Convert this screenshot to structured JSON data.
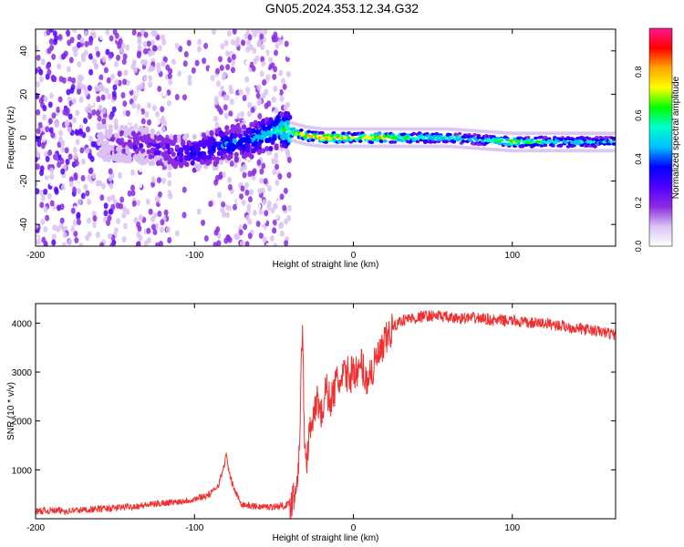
{
  "figure": {
    "title": "GN05.2024.353.12.34.G32"
  },
  "chart_data": [
    {
      "type": "heatmap",
      "xlabel": "Height of straight line (km)",
      "ylabel": "Frequency (Hz)",
      "xlim": [
        -200,
        165
      ],
      "ylim": [
        -50,
        50
      ],
      "xticks": [
        -200,
        -100,
        0,
        100
      ],
      "yticks": [
        -40,
        -20,
        0,
        20,
        40
      ],
      "grid": false,
      "colorbar": {
        "label": "Normalized spectral amplitude",
        "ticks": [
          0.0,
          0.2,
          0.4,
          0.6,
          0.8
        ],
        "range": [
          0,
          1
        ],
        "colors": [
          "#ffffff",
          "#d9c2f2",
          "#8a2be2",
          "#5000ff",
          "#0000ff",
          "#00bfff",
          "#00ffcc",
          "#00ff00",
          "#ffff00",
          "#ffa500",
          "#ff0000",
          "#ff1493"
        ]
      },
      "ridge": {
        "x": [
          -160,
          -140,
          -120,
          -110,
          -100,
          -90,
          -80,
          -70,
          -60,
          -50,
          -45,
          -40,
          -30,
          -20,
          -10,
          0,
          10,
          20,
          40,
          60,
          80,
          100,
          120,
          140,
          165
        ],
        "y": [
          -2,
          -3,
          -5,
          -7,
          -7,
          -5,
          -3,
          -2,
          0,
          3,
          4,
          3,
          1,
          0,
          0,
          0,
          0,
          0,
          0,
          0,
          -1,
          -2,
          -2,
          -2,
          -2
        ],
        "amplitude": [
          0.1,
          0.2,
          0.25,
          0.3,
          0.35,
          0.35,
          0.4,
          0.4,
          0.45,
          0.5,
          0.55,
          0.65,
          0.8,
          0.9,
          0.85,
          0.7,
          0.8,
          0.75,
          0.6,
          0.55,
          0.5,
          0.75,
          0.55,
          0.5,
          0.5
        ]
      }
    },
    {
      "type": "line",
      "xlabel": "Height of straight line (km)",
      "ylabel": "SNR (10 * v/v)",
      "xlim": [
        -200,
        165
      ],
      "ylim": [
        0,
        4400
      ],
      "xticks": [
        -200,
        -100,
        0,
        100
      ],
      "yticks": [
        1000,
        2000,
        3000,
        4000
      ],
      "grid": false,
      "series": [
        {
          "color": "#ee3030",
          "x": [
            -200,
            -190,
            -180,
            -170,
            -160,
            -150,
            -140,
            -130,
            -120,
            -110,
            -100,
            -95,
            -90,
            -85,
            -82,
            -80,
            -78,
            -75,
            -72,
            -70,
            -65,
            -60,
            -55,
            -50,
            -45,
            -40,
            -36,
            -34,
            -33,
            -32,
            -31,
            -30,
            -28,
            -26,
            -25,
            -23,
            -20,
            -17,
            -15,
            -12,
            -10,
            -8,
            -5,
            -2,
            0,
            3,
            5,
            8,
            10,
            12,
            15,
            18,
            20,
            22,
            25,
            28,
            30,
            35,
            40,
            45,
            50,
            55,
            60,
            70,
            80,
            90,
            100,
            110,
            120,
            130,
            140,
            150,
            160,
            165
          ],
          "y": [
            150,
            170,
            160,
            180,
            200,
            220,
            250,
            280,
            320,
            350,
            400,
            450,
            500,
            700,
            1000,
            1300,
            900,
            600,
            400,
            300,
            260,
            250,
            240,
            250,
            260,
            300,
            600,
            1500,
            2800,
            4100,
            1800,
            1000,
            1700,
            2200,
            1900,
            2500,
            2100,
            2700,
            2400,
            2600,
            2900,
            2700,
            3000,
            2900,
            3100,
            2900,
            3200,
            2800,
            3000,
            3000,
            3300,
            3400,
            3600,
            3750,
            3900,
            4000,
            4050,
            4100,
            4100,
            4150,
            4150,
            4150,
            4100,
            4100,
            4100,
            4050,
            4050,
            4000,
            4000,
            3950,
            3900,
            3850,
            3800,
            3750
          ]
        }
      ]
    }
  ]
}
